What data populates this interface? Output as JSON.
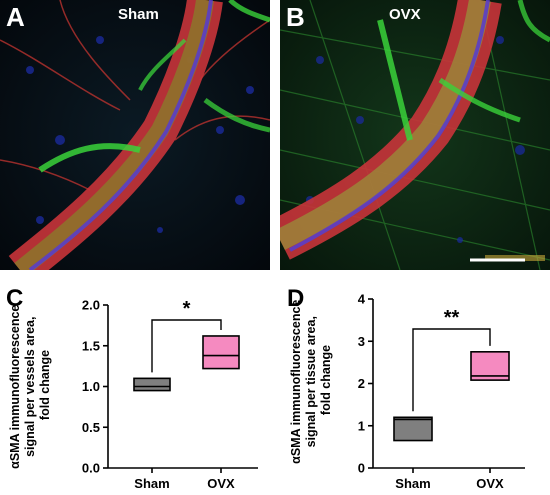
{
  "panels": {
    "A": {
      "letter": "A",
      "condition": "Sham"
    },
    "B": {
      "letter": "B",
      "condition": "OVX"
    }
  },
  "chart_data": [
    {
      "panel": "C",
      "type": "box",
      "categories": [
        "Sham",
        "OVX"
      ],
      "ylabel": "αSMA immunofluorescence signal per vessels area, fold change",
      "ylim": [
        0,
        2.0
      ],
      "yticks": [
        "0.0",
        "0.5",
        "1.0",
        "1.5",
        "2.0"
      ],
      "tick_values": [
        0,
        0.5,
        1.0,
        1.5,
        2.0
      ],
      "boxes": [
        {
          "name": "Sham",
          "q1": 0.95,
          "median": 1.0,
          "q3": 1.1,
          "color": "#7f7f7f"
        },
        {
          "name": "OVX",
          "q1": 1.22,
          "median": 1.38,
          "q3": 1.62,
          "color": "#f58ac0"
        }
      ],
      "significance": "*"
    },
    {
      "panel": "D",
      "type": "box",
      "categories": [
        "Sham",
        "OVX"
      ],
      "ylabel": "αSMA immunofluorescence signal per tissue area, fold change",
      "ylim": [
        0,
        4
      ],
      "yticks": [
        "0",
        "1",
        "2",
        "3",
        "4"
      ],
      "tick_values": [
        0,
        1,
        2,
        3,
        4
      ],
      "boxes": [
        {
          "name": "Sham",
          "q1": 0.65,
          "median": 1.15,
          "q3": 1.2,
          "color": "#7f7f7f"
        },
        {
          "name": "OVX",
          "q1": 2.08,
          "median": 2.18,
          "q3": 2.75,
          "color": "#f58ac0"
        }
      ],
      "significance": "**"
    }
  ]
}
